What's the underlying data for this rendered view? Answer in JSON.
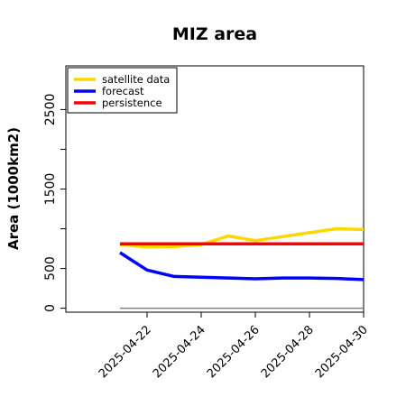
{
  "chart_data": {
    "type": "line",
    "title": "MIZ area",
    "xlabel": "",
    "ylabel": "Area (1000km2)",
    "x": [
      "2025-04-21",
      "2025-04-22",
      "2025-04-23",
      "2025-04-24",
      "2025-04-25",
      "2025-04-26",
      "2025-04-27",
      "2025-04-28",
      "2025-04-29",
      "2025-04-30"
    ],
    "xlim": [
      "2025-04-19",
      "2025-04-30"
    ],
    "ylim": [
      -50,
      3050
    ],
    "yticks": [
      0,
      500,
      1500,
      2500
    ],
    "ytick_labels": [
      "0",
      "500",
      "1500",
      "2500"
    ],
    "xticks": [
      "2025-04-22",
      "2025-04-24",
      "2025-04-26",
      "2025-04-28",
      "2025-04-30"
    ],
    "highlighted_xtick": "2025-04-22",
    "highlight_color": "#2e8b22",
    "grid": false,
    "legend_position": "top-left",
    "series": [
      {
        "name": "satellite data",
        "color": "#ffd700",
        "values": [
          800,
          770,
          775,
          800,
          910,
          850,
          900,
          950,
          1000,
          990
        ]
      },
      {
        "name": "forecast",
        "color": "#0000ff",
        "values": [
          700,
          480,
          400,
          390,
          380,
          370,
          380,
          380,
          375,
          360
        ]
      },
      {
        "name": "persistence",
        "color": "#ff0000",
        "values": [
          810,
          810,
          810,
          810,
          810,
          810,
          810,
          810,
          810,
          810
        ]
      }
    ],
    "reference_line": {
      "y": 0,
      "color": "#808080"
    }
  }
}
